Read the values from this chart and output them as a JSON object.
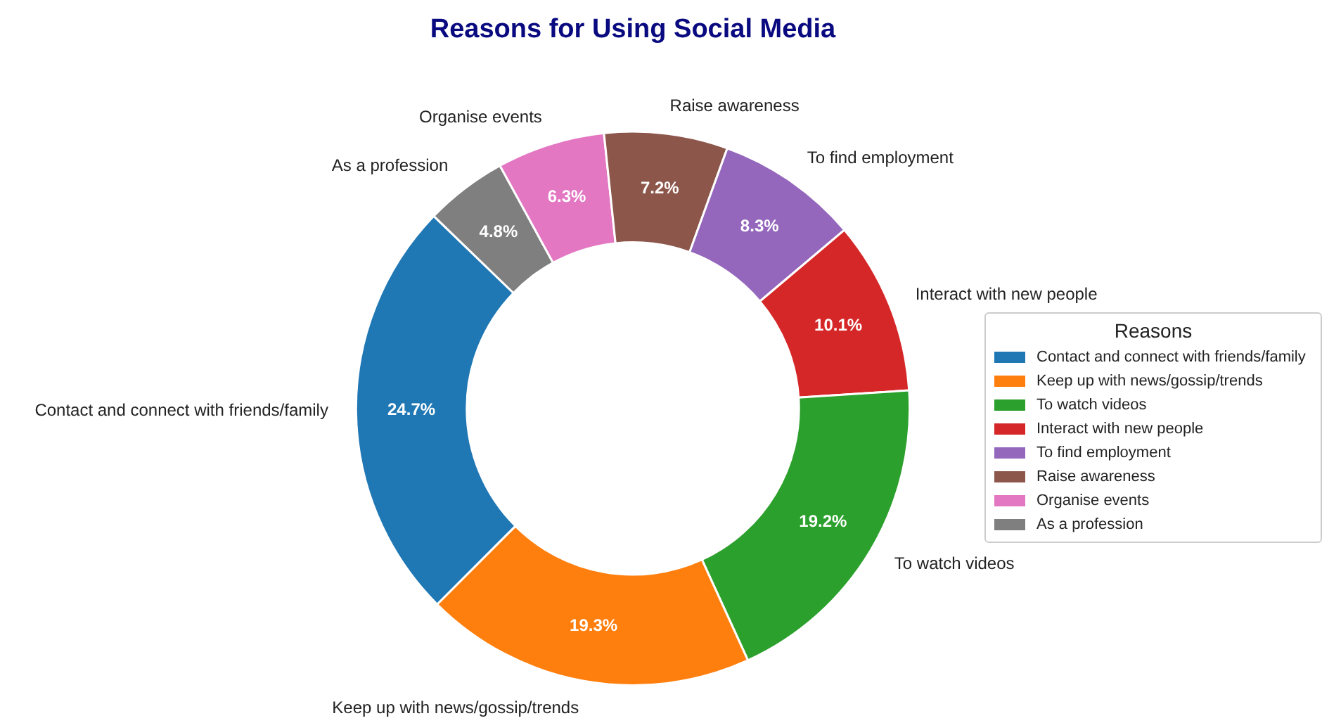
{
  "chart_data": {
    "type": "donut",
    "title": "Reasons for Using Social Media",
    "legend_title": "Reasons",
    "legend": "right",
    "categories": [
      "Contact and connect with friends/family",
      "Keep up with news/gossip/trends",
      "To watch videos",
      "Interact with new people",
      "To find employment",
      "Raise awareness",
      "Organise events",
      "As a profession"
    ],
    "values": [
      24.7,
      19.3,
      19.2,
      10.1,
      8.3,
      7.2,
      6.3,
      4.8
    ],
    "value_labels": [
      "24.7%",
      "19.3%",
      "19.2%",
      "10.1%",
      "8.3%",
      "7.2%",
      "6.3%",
      "4.8%"
    ],
    "colors": [
      "#1f77b4",
      "#ff7f0e",
      "#2ca02c",
      "#d62728",
      "#9467bd",
      "#8c564b",
      "#e377c2",
      "#7f7f7f"
    ]
  }
}
